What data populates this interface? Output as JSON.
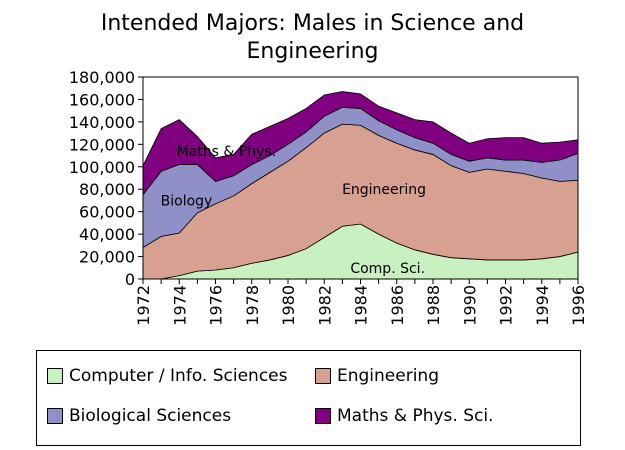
{
  "title_lines": [
    "Intended Majors: Males in Science and",
    "Engineering"
  ],
  "legend": [
    {
      "label": "Computer / Info. Sciences",
      "color": "#c8f0c0",
      "pos": "bottom-left"
    },
    {
      "label": "Engineering",
      "color": "#d8a090",
      "pos": "bottom-left"
    },
    {
      "label": "Biological Sciences",
      "color": "#9090c8",
      "pos": "bottom-left"
    },
    {
      "label": "Maths & Phys. Sci.",
      "color": "#800080",
      "pos": "bottom-left"
    }
  ],
  "area_labels": [
    "Comp. Sci.",
    "Engineering",
    "Biology",
    "Maths & Phys."
  ],
  "chart_data": {
    "type": "area",
    "stacked": true,
    "x": [
      1972,
      1973,
      1974,
      1975,
      1976,
      1977,
      1978,
      1979,
      1980,
      1981,
      1982,
      1983,
      1984,
      1985,
      1986,
      1987,
      1988,
      1989,
      1990,
      1991,
      1992,
      1993,
      1994,
      1995,
      1996
    ],
    "x_tick_labels": [
      "1972",
      "1974",
      "1976",
      "1978",
      "1980",
      "1982",
      "1984",
      "1986",
      "1988",
      "1990",
      "1992",
      "1994",
      "1996"
    ],
    "y_tick_labels": [
      "0",
      "20,000",
      "40,000",
      "60,000",
      "80,000",
      "100,000",
      "120,000",
      "140,000",
      "160,000",
      "180,000"
    ],
    "ylim": [
      0,
      180000
    ],
    "grid": false,
    "legend_position": "bottom",
    "series": [
      {
        "name": "Computer / Info. Sciences",
        "color": "#c8f0c0",
        "values": [
          0,
          0,
          3000,
          7000,
          8000,
          10000,
          14000,
          17000,
          21000,
          27000,
          37000,
          47000,
          49000,
          40000,
          32000,
          26000,
          22000,
          19000,
          18000,
          17000,
          17000,
          17000,
          18000,
          20000,
          24000
        ]
      },
      {
        "name": "Engineering",
        "color": "#d8a090",
        "values": [
          28000,
          38000,
          38000,
          52000,
          59000,
          64000,
          71000,
          78000,
          84000,
          90000,
          93000,
          91000,
          88000,
          88000,
          89000,
          89000,
          89000,
          82000,
          77000,
          81000,
          79000,
          77000,
          72000,
          67000,
          64000
        ]
      },
      {
        "name": "Biological Sciences",
        "color": "#9090c8",
        "values": [
          47000,
          58000,
          61000,
          43000,
          20000,
          18000,
          17000,
          15000,
          15000,
          14000,
          15000,
          15000,
          15000,
          13000,
          12000,
          11000,
          10000,
          10000,
          10000,
          10000,
          10000,
          12000,
          14000,
          19000,
          24000
        ]
      },
      {
        "name": "Maths & Phys. Sci.",
        "color": "#800080",
        "values": [
          26000,
          38000,
          40000,
          25000,
          21000,
          19000,
          27000,
          26000,
          23000,
          21000,
          19000,
          14000,
          13000,
          13000,
          15000,
          16000,
          19000,
          19000,
          16000,
          17000,
          20000,
          20000,
          17000,
          16000,
          12000
        ]
      }
    ]
  }
}
